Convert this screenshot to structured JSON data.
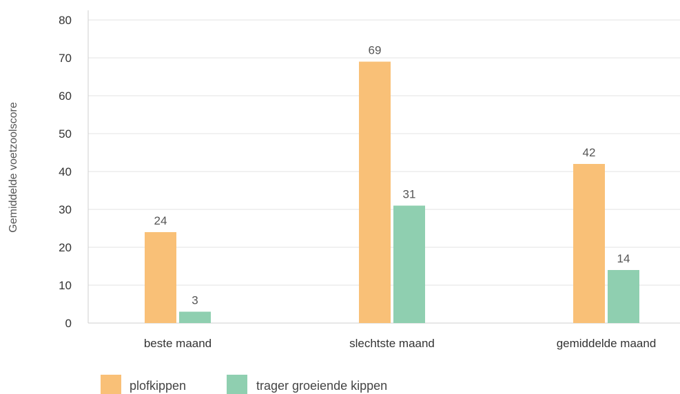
{
  "chart_data": {
    "type": "bar",
    "categories": [
      "beste maand",
      "slechtste maand",
      "gemiddelde maand"
    ],
    "series": [
      {
        "name": "plofkippen",
        "values": [
          24,
          69,
          42
        ],
        "color": "#f9c077"
      },
      {
        "name": "trager groeiende kippen",
        "values": [
          3,
          31,
          14
        ],
        "color": "#8fcfb0"
      }
    ],
    "ylabel": "Gemiddelde voetzoolscore",
    "xlabel": "",
    "ylim": [
      0,
      80
    ],
    "yticks": [
      0,
      10,
      20,
      30,
      40,
      50,
      60,
      70,
      80
    ],
    "grid": true,
    "legend_position": "bottom-left"
  }
}
